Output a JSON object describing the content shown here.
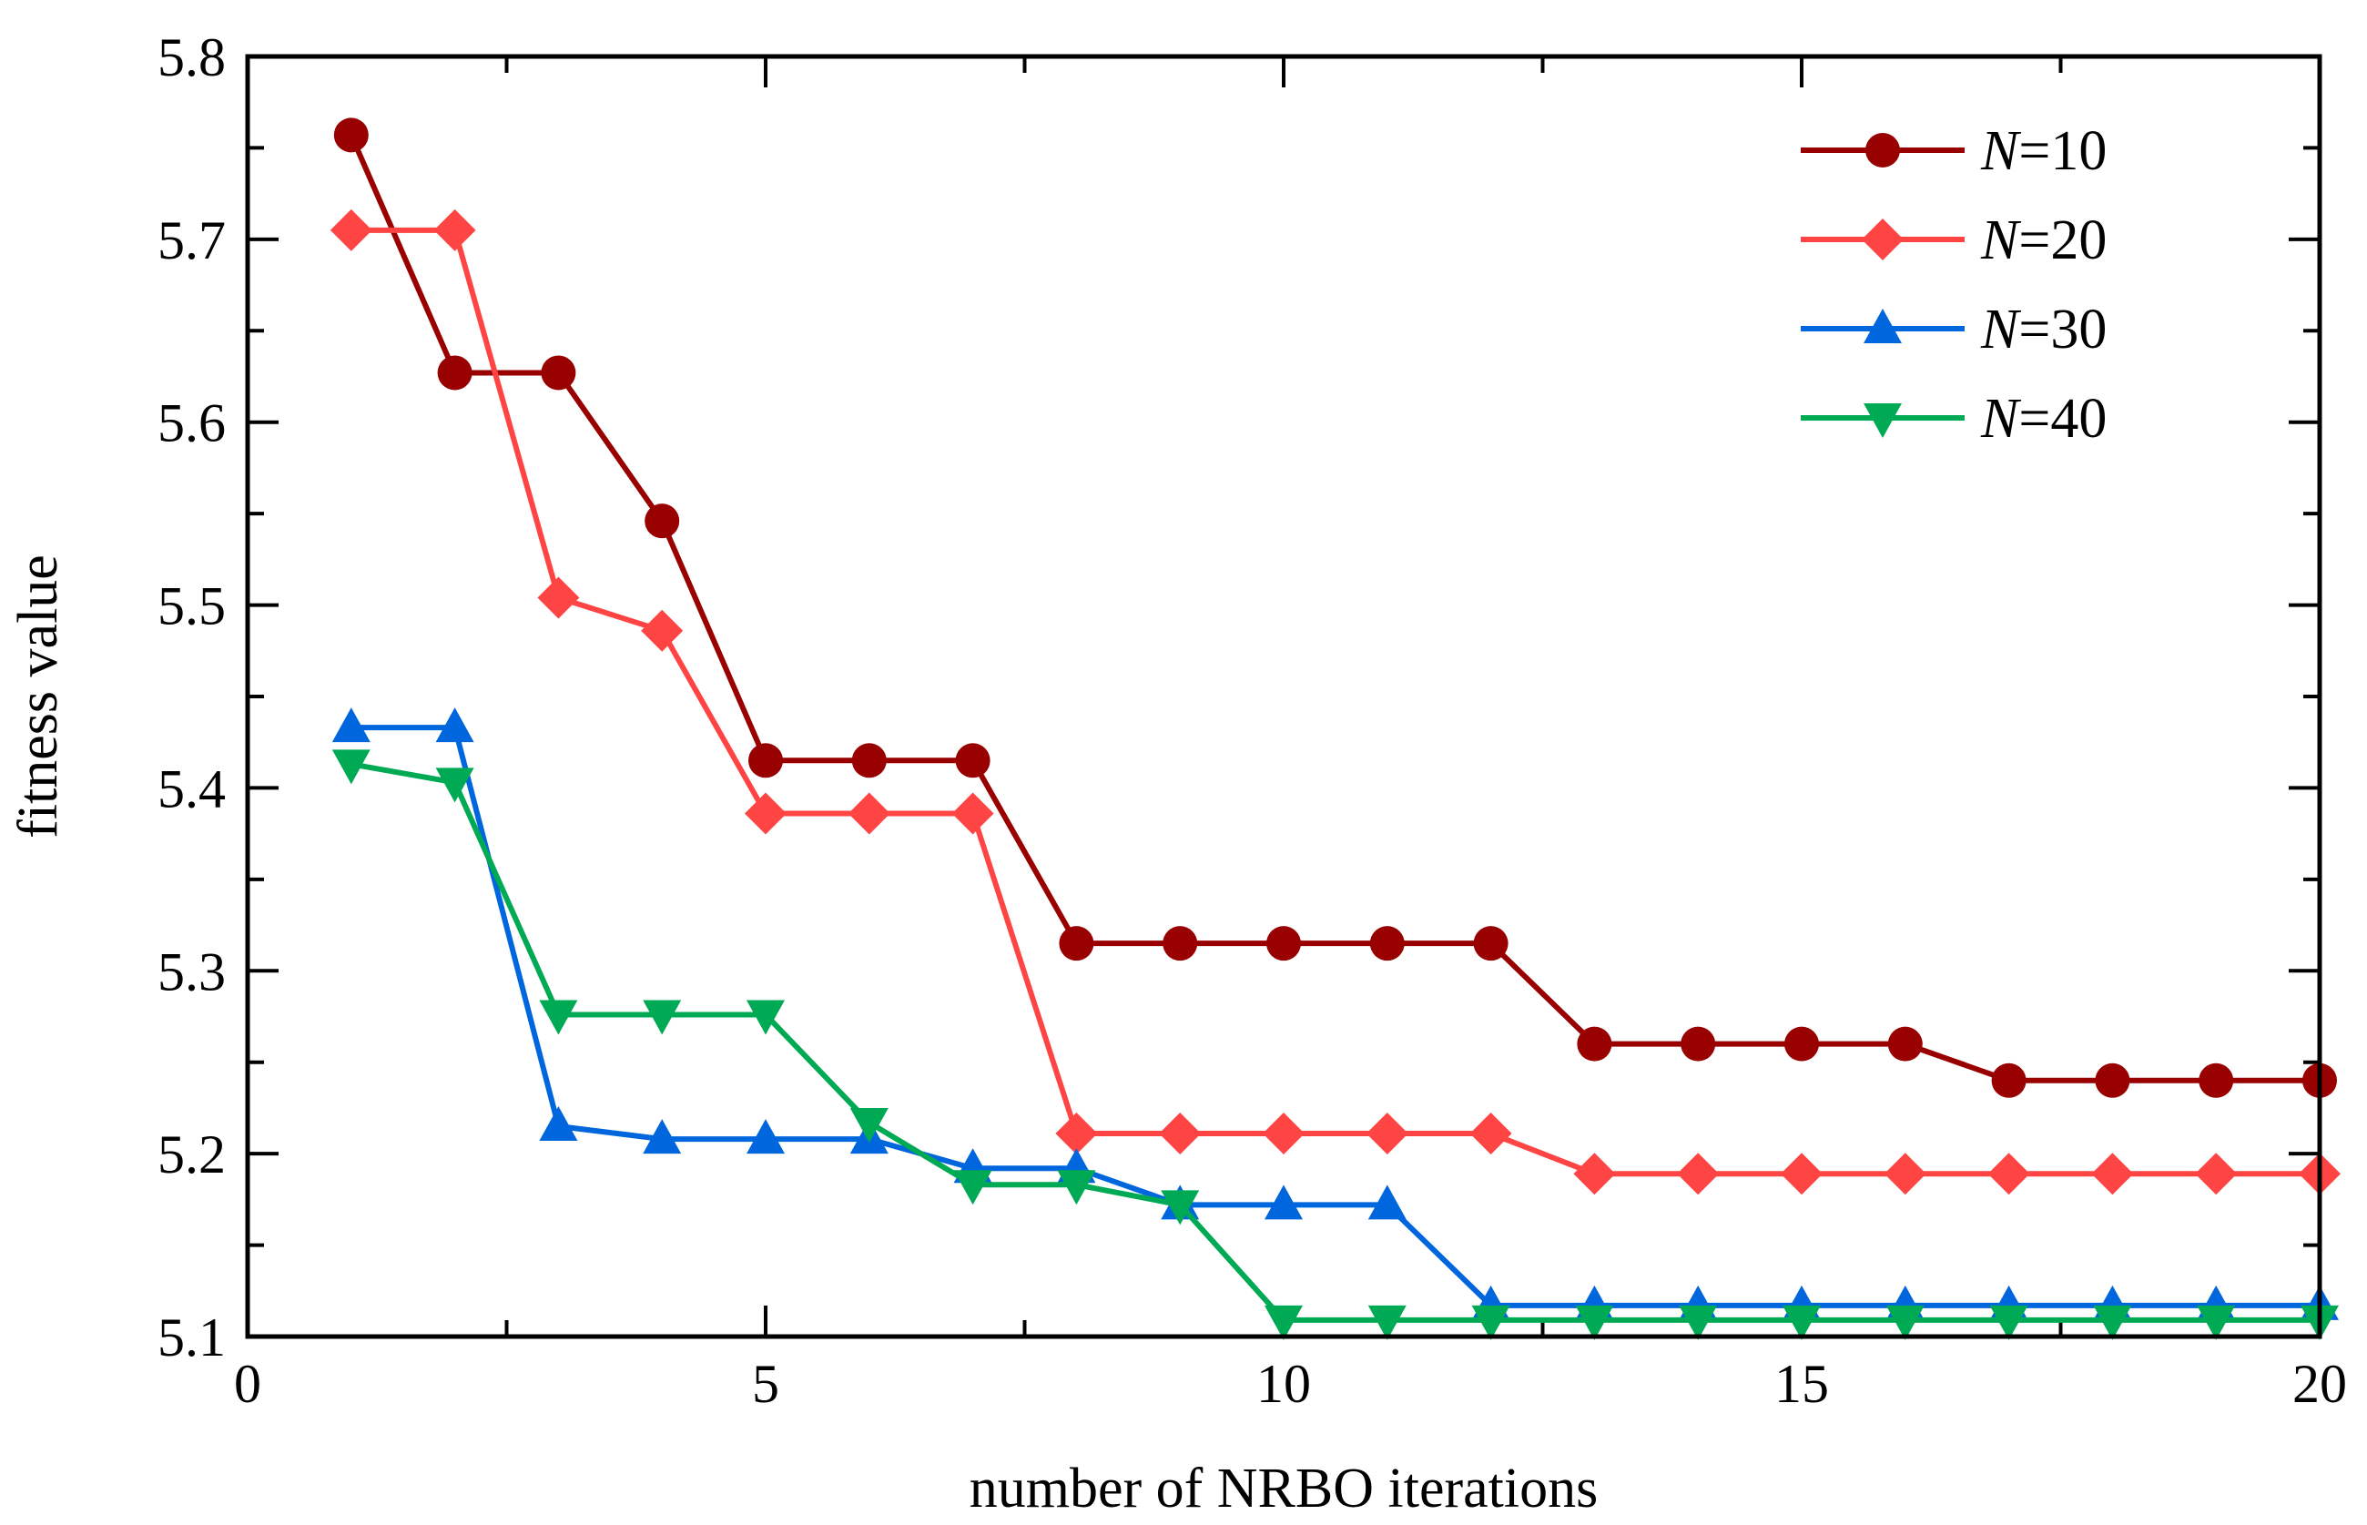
{
  "chart_data": {
    "type": "line",
    "title": "",
    "xlabel": "number of NRBO iterations",
    "ylabel": "fitness value",
    "xlim": [
      0,
      20
    ],
    "ylim": [
      5.1,
      5.8
    ],
    "x_ticks": [
      0,
      5,
      10,
      15,
      20
    ],
    "y_ticks": [
      5.1,
      5.2,
      5.3,
      5.4,
      5.5,
      5.6,
      5.7,
      5.8
    ],
    "x_tick_labels": [
      "0",
      "5",
      "10",
      "15",
      "20"
    ],
    "y_tick_labels": [
      "5.1",
      "5.2",
      "5.3",
      "5.4",
      "5.5",
      "5.6",
      "5.7",
      "5.8"
    ],
    "x": [
      1,
      2,
      3,
      4,
      5,
      6,
      7,
      8,
      9,
      10,
      11,
      12,
      13,
      14,
      15,
      16,
      17,
      18,
      19,
      20
    ],
    "legend_position": "top-right",
    "series": [
      {
        "name": "N=10",
        "label_italic": "N",
        "label_rest": "=10",
        "color": "#990000",
        "marker": "circle",
        "values": [
          5.757,
          5.627,
          5.627,
          5.546,
          5.415,
          5.415,
          5.415,
          5.315,
          5.315,
          5.315,
          5.315,
          5.315,
          5.26,
          5.26,
          5.26,
          5.26,
          5.24,
          5.24,
          5.24,
          5.24
        ]
      },
      {
        "name": "N=20",
        "label_italic": "N",
        "label_rest": "=20",
        "color": "#FF4444",
        "marker": "diamond",
        "values": [
          5.705,
          5.705,
          5.504,
          5.486,
          5.386,
          5.386,
          5.386,
          5.211,
          5.211,
          5.211,
          5.211,
          5.211,
          5.189,
          5.189,
          5.189,
          5.189,
          5.189,
          5.189,
          5.189,
          5.189
        ]
      },
      {
        "name": "N=30",
        "label_italic": "N",
        "label_rest": "=30",
        "color": "#0066DD",
        "marker": "triangle-up",
        "values": [
          5.433,
          5.433,
          5.215,
          5.208,
          5.208,
          5.208,
          5.192,
          5.192,
          5.172,
          5.172,
          5.172,
          5.117,
          5.117,
          5.117,
          5.117,
          5.117,
          5.117,
          5.117,
          5.117,
          5.117
        ]
      },
      {
        "name": "N=40",
        "label_italic": "N",
        "label_rest": "=40",
        "color": "#00AA55",
        "marker": "triangle-down",
        "values": [
          5.413,
          5.403,
          5.276,
          5.276,
          5.276,
          5.217,
          5.183,
          5.183,
          5.172,
          5.109,
          5.109,
          5.109,
          5.109,
          5.109,
          5.109,
          5.109,
          5.109,
          5.109,
          5.109,
          5.109
        ]
      }
    ]
  }
}
